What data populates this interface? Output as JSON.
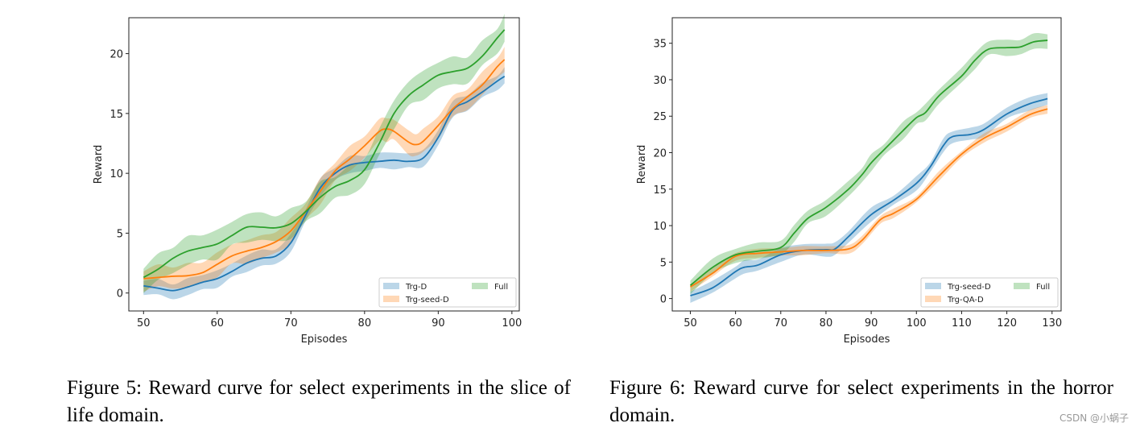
{
  "chart_data": [
    {
      "type": "line",
      "xlabel": "Episodes",
      "ylabel": "Reward",
      "xlim": [
        48,
        101
      ],
      "ylim": [
        -1.5,
        23
      ],
      "xticks": [
        50,
        60,
        70,
        80,
        90,
        100
      ],
      "yticks": [
        0,
        5,
        10,
        15,
        20
      ],
      "grid": false,
      "legend_placement": "lower-right",
      "legend_columns": 2,
      "series": [
        {
          "name": "Trg-D",
          "color": "#1f77b4",
          "band": 0.7,
          "x": [
            50,
            52,
            54,
            56,
            58,
            60,
            62,
            64,
            66,
            68,
            70,
            72,
            74,
            76,
            78,
            80,
            82,
            84,
            86,
            88,
            90,
            92,
            94,
            96,
            98,
            99
          ],
          "y": [
            0.6,
            0.4,
            0.2,
            0.5,
            0.9,
            1.2,
            1.8,
            2.5,
            2.9,
            3.1,
            4.2,
            6.5,
            8.8,
            10,
            10.7,
            10.9,
            11.0,
            11.1,
            11.0,
            11.3,
            13,
            15.3,
            16,
            16.8,
            17.7,
            18.1
          ]
        },
        {
          "name": "Trg-seed-D",
          "color": "#ff7f0e",
          "band": 1.0,
          "x": [
            50,
            52,
            54,
            56,
            58,
            60,
            62,
            64,
            66,
            68,
            70,
            72,
            74,
            76,
            78,
            80,
            82,
            83,
            84,
            86,
            87,
            88,
            90,
            92,
            94,
            96,
            98,
            99
          ],
          "y": [
            1.2,
            1.3,
            1.4,
            1.45,
            1.7,
            2.4,
            3.1,
            3.5,
            3.8,
            4.3,
            5.2,
            6.8,
            8.5,
            10.2,
            11.2,
            12.3,
            13.5,
            13.7,
            13.5,
            12.6,
            12.4,
            12.7,
            14,
            15.4,
            16.4,
            17.4,
            18.9,
            19.5
          ]
        },
        {
          "name": "Full",
          "color": "#2ca02c",
          "band": 1.2,
          "x": [
            50,
            52,
            54,
            56,
            58,
            60,
            62,
            64,
            66,
            68,
            70,
            72,
            74,
            76,
            78,
            80,
            82,
            84,
            86,
            88,
            90,
            92,
            94,
            96,
            98,
            99
          ],
          "y": [
            1.3,
            2,
            2.9,
            3.5,
            3.8,
            4.1,
            4.8,
            5.5,
            5.5,
            5.45,
            5.8,
            6.8,
            8,
            8.9,
            9.4,
            10.3,
            12.5,
            15,
            16.5,
            17.4,
            18.2,
            18.5,
            18.8,
            19.8,
            21.3,
            22
          ]
        }
      ]
    },
    {
      "type": "line",
      "xlabel": "Episodes",
      "ylabel": "Reward",
      "xlim": [
        46,
        132
      ],
      "ylim": [
        -1.7,
        38.5
      ],
      "xticks": [
        50,
        60,
        70,
        80,
        90,
        100,
        110,
        120,
        130
      ],
      "yticks": [
        0,
        5,
        10,
        15,
        20,
        25,
        30,
        35
      ],
      "grid": false,
      "legend_placement": "lower-right",
      "legend_columns": 2,
      "series": [
        {
          "name": "Trg-seed-D",
          "color": "#1f77b4",
          "band": 0.9,
          "x": [
            50,
            55,
            60,
            62,
            65,
            70,
            75,
            80,
            82,
            85,
            90,
            95,
            100,
            103,
            106,
            108,
            112,
            115,
            120,
            125,
            129
          ],
          "y": [
            0.4,
            1.5,
            3.7,
            4.3,
            4.6,
            6,
            6.6,
            6.7,
            6.8,
            8.5,
            11.5,
            13.5,
            15.8,
            18,
            21,
            22.2,
            22.5,
            23.2,
            25.3,
            26.7,
            27.4
          ]
        },
        {
          "name": "Trg-QA-D",
          "color": "#ff7f0e",
          "band": 0.6,
          "x": [
            50,
            55,
            60,
            65,
            70,
            75,
            80,
            85,
            88,
            92,
            95,
            100,
            105,
            110,
            115,
            120,
            125,
            129
          ],
          "y": [
            1.6,
            3.5,
            5.8,
            6.2,
            6.4,
            6.6,
            6.6,
            6.8,
            8,
            10.8,
            11.7,
            13.6,
            16.8,
            19.8,
            22,
            23.5,
            25.2,
            26
          ]
        },
        {
          "name": "Full",
          "color": "#2ca02c",
          "band": 1.1,
          "x": [
            50,
            55,
            60,
            65,
            70,
            73,
            76,
            80,
            85,
            88,
            90,
            93,
            97,
            100,
            102,
            105,
            110,
            113,
            116,
            120,
            123,
            126,
            129
          ],
          "y": [
            1.8,
            4.3,
            6,
            6.5,
            7,
            9,
            11,
            12.5,
            15,
            17,
            18.6,
            20.5,
            23,
            24.8,
            25.5,
            27.8,
            30.5,
            32.7,
            34.2,
            34.4,
            34.5,
            35.2,
            35.4
          ]
        }
      ]
    }
  ],
  "captions": [
    "Figure 5: Reward curve for select experiments in the slice of life domain.",
    "Figure 6: Reward curve for select experiments in the horror domain."
  ],
  "watermark": "CSDN @小蜗子"
}
